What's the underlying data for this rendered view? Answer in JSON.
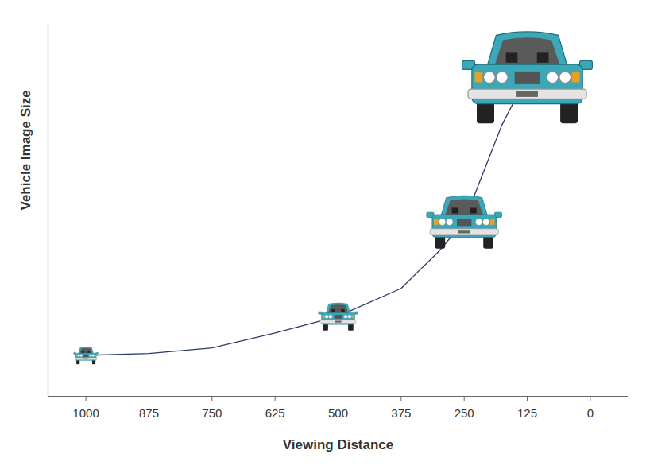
{
  "chart_data": {
    "type": "line",
    "x_label": "Viewing Distance",
    "y_label": "Vehicle Image Size",
    "x": [
      1000,
      875,
      750,
      625,
      500,
      375,
      300,
      250,
      175,
      125
    ],
    "series": [
      {
        "type": "line",
        "color": "#2b3a67",
        "values": [
          11,
          11.5,
          13,
          17,
          21.5,
          29,
          39,
          47,
          73,
          86
        ]
      },
      {
        "type": "scatter",
        "marker": "car",
        "color": "#3aa8b8",
        "values": [
          11,
          null,
          null,
          null,
          21.5,
          null,
          null,
          47,
          null,
          86
        ]
      }
    ],
    "xlim": [
      1075,
      -75
    ],
    "ylim": [
      0,
      100
    ],
    "xticks": [
      1000,
      875,
      750,
      625,
      500,
      375,
      250,
      125,
      0
    ],
    "yticks": [],
    "tick_labels": "x",
    "grid": false
  }
}
